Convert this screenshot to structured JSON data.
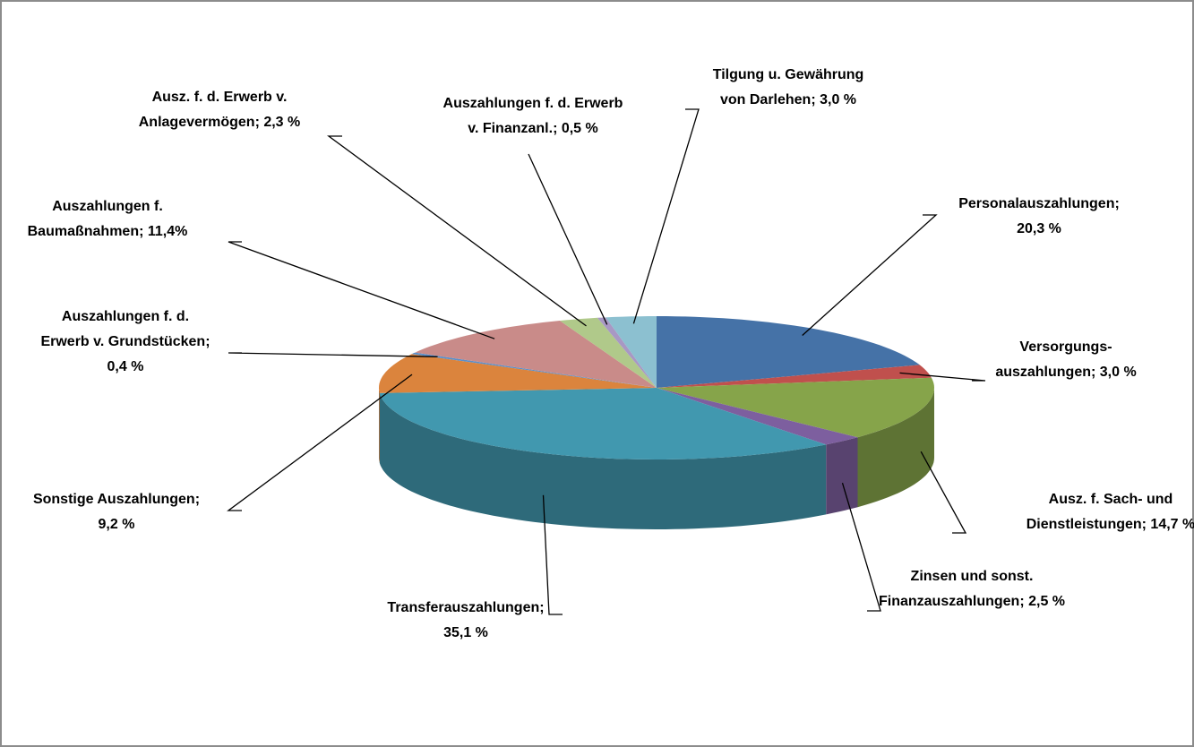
{
  "chart_data": {
    "type": "pie3d",
    "labels": [
      [
        "Personalauszahlungen;",
        "20,3 %"
      ],
      [
        "Versorgungs-",
        "auszahlungen; 3,0 %"
      ],
      [
        "Ausz. f. Sach- und",
        "Dienstleistungen; 14,7 %"
      ],
      [
        "Zinsen und sonst.",
        "Finanzauszahlungen; 2,5 %"
      ],
      [
        "Transferauszahlungen;",
        "35,1 %"
      ],
      [
        "Sonstige Auszahlungen;",
        "9,2 %"
      ],
      [
        "Auszahlungen f. d.",
        "Erwerb v. Grundstücken;",
        "0,4 %"
      ],
      [
        "Auszahlungen f.",
        "Baumaßnahmen; 11,4%"
      ],
      [
        "Ausz. f. d. Erwerb v.",
        "Anlagevermögen; 2,3 %"
      ],
      [
        "Auszahlungen f. d. Erwerb",
        "v. Finanzanl.; 0,5 %"
      ],
      [
        "Tilgung u. Gewährung",
        "von Darlehen; 3,0 %"
      ]
    ],
    "values": [
      20.3,
      3.0,
      14.7,
      2.5,
      35.1,
      9.2,
      0.4,
      11.4,
      2.3,
      0.5,
      3.0
    ],
    "colors": [
      "#4572a7",
      "#c0504d",
      "#86a44a",
      "#7d5f9f",
      "#4198af",
      "#db843d",
      "#5b8fc9",
      "#c98b89",
      "#b0c98a",
      "#a898c4",
      "#8cc0d0"
    ]
  }
}
